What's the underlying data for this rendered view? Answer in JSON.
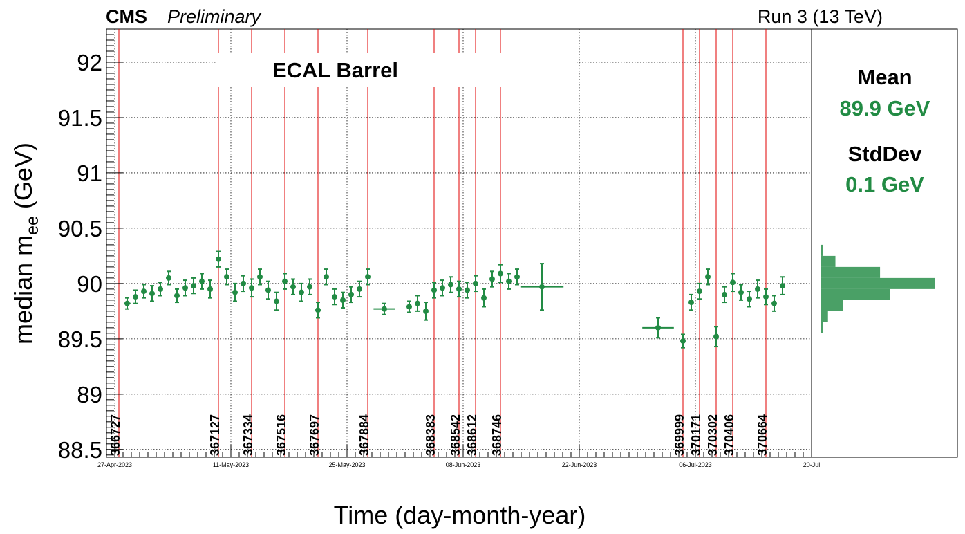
{
  "header": {
    "experiment": "CMS",
    "status": "Preliminary",
    "run_label": "Run 3 (13 TeV)"
  },
  "chart_data": {
    "type": "scatter",
    "title": "ECAL Barrel",
    "xlabel": "Time (day-month-year)",
    "ylabel_main": "median m",
    "ylabel_sub": "ee",
    "ylabel_unit": " (GeV)",
    "ylim": [
      88.43,
      92.3
    ],
    "xlim": [
      "2023-04-26",
      "2023-07-20"
    ],
    "y_ticks": [
      "88.5",
      "89",
      "89.5",
      "90",
      "90.5",
      "91",
      "91.5",
      "92"
    ],
    "x_ticks": [
      {
        "date": "2023-04-27",
        "label": "27-Apr-2023"
      },
      {
        "date": "2023-05-11",
        "label": "11-May-2023"
      },
      {
        "date": "2023-05-25",
        "label": "25-May-2023"
      },
      {
        "date": "2023-06-08",
        "label": "08-Jun-2023"
      },
      {
        "date": "2023-06-22",
        "label": "22-Jun-2023"
      },
      {
        "date": "2023-07-06",
        "label": "06-Jul-2023"
      },
      {
        "date": "2023-07-20",
        "label": "20-Jul"
      }
    ],
    "grid": true,
    "series_color": "#228b44",
    "run_line_color": "#e00000",
    "runs": [
      {
        "run": "366727",
        "date": "2023-04-27"
      },
      {
        "run": "367127",
        "date": "2023-05-09"
      },
      {
        "run": "367334",
        "date": "2023-05-13"
      },
      {
        "run": "367516",
        "date": "2023-05-17"
      },
      {
        "run": "367697",
        "date": "2023-05-21"
      },
      {
        "run": "367884",
        "date": "2023-05-27"
      },
      {
        "run": "368383",
        "date": "2023-06-04"
      },
      {
        "run": "368542",
        "date": "2023-06-07"
      },
      {
        "run": "368612",
        "date": "2023-06-09"
      },
      {
        "run": "368746",
        "date": "2023-06-12"
      },
      {
        "run": "369999",
        "date": "2023-07-04"
      },
      {
        "run": "370171",
        "date": "2023-07-06"
      },
      {
        "run": "370302",
        "date": "2023-07-08"
      },
      {
        "run": "370406",
        "date": "2023-07-10"
      },
      {
        "run": "370664",
        "date": "2023-07-14"
      }
    ],
    "points": [
      {
        "x": "2023-04-28",
        "y": 89.82,
        "yerr": 0.05,
        "xerr": 0.4
      },
      {
        "x": "2023-04-29",
        "y": 89.88,
        "yerr": 0.06
      },
      {
        "x": "2023-04-30",
        "y": 89.93,
        "yerr": 0.06
      },
      {
        "x": "2023-05-01",
        "y": 89.91,
        "yerr": 0.07
      },
      {
        "x": "2023-05-02",
        "y": 89.95,
        "yerr": 0.06
      },
      {
        "x": "2023-05-03",
        "y": 90.05,
        "yerr": 0.06
      },
      {
        "x": "2023-05-04",
        "y": 89.89,
        "yerr": 0.06
      },
      {
        "x": "2023-05-05",
        "y": 89.96,
        "yerr": 0.07
      },
      {
        "x": "2023-05-06",
        "y": 89.98,
        "yerr": 0.07
      },
      {
        "x": "2023-05-07",
        "y": 90.02,
        "yerr": 0.07
      },
      {
        "x": "2023-05-08",
        "y": 89.95,
        "yerr": 0.08
      },
      {
        "x": "2023-05-09",
        "y": 90.22,
        "yerr": 0.07
      },
      {
        "x": "2023-05-10",
        "y": 90.06,
        "yerr": 0.07
      },
      {
        "x": "2023-05-11",
        "y": 89.92,
        "yerr": 0.08
      },
      {
        "x": "2023-05-12",
        "y": 90.0,
        "yerr": 0.07
      },
      {
        "x": "2023-05-13",
        "y": 89.96,
        "yerr": 0.08
      },
      {
        "x": "2023-05-14",
        "y": 90.06,
        "yerr": 0.07
      },
      {
        "x": "2023-05-15",
        "y": 89.94,
        "yerr": 0.08
      },
      {
        "x": "2023-05-16",
        "y": 89.84,
        "yerr": 0.08
      },
      {
        "x": "2023-05-17",
        "y": 90.02,
        "yerr": 0.07
      },
      {
        "x": "2023-05-18",
        "y": 89.97,
        "yerr": 0.07
      },
      {
        "x": "2023-05-19",
        "y": 89.92,
        "yerr": 0.08
      },
      {
        "x": "2023-05-20",
        "y": 89.97,
        "yerr": 0.07
      },
      {
        "x": "2023-05-21",
        "y": 89.76,
        "yerr": 0.07
      },
      {
        "x": "2023-05-22",
        "y": 90.06,
        "yerr": 0.07
      },
      {
        "x": "2023-05-23",
        "y": 89.88,
        "yerr": 0.07
      },
      {
        "x": "2023-05-24",
        "y": 89.85,
        "yerr": 0.07
      },
      {
        "x": "2023-05-25",
        "y": 89.9,
        "yerr": 0.07
      },
      {
        "x": "2023-05-26",
        "y": 89.95,
        "yerr": 0.07
      },
      {
        "x": "2023-05-27",
        "y": 90.06,
        "yerr": 0.07
      },
      {
        "x": "2023-05-29",
        "y": 89.77,
        "yerr": 0.05,
        "xerr": 1.3
      },
      {
        "x": "2023-06-01",
        "y": 89.79,
        "yerr": 0.05
      },
      {
        "x": "2023-06-02",
        "y": 89.82,
        "yerr": 0.07
      },
      {
        "x": "2023-06-03",
        "y": 89.75,
        "yerr": 0.08
      },
      {
        "x": "2023-06-04",
        "y": 89.94,
        "yerr": 0.07
      },
      {
        "x": "2023-06-05",
        "y": 89.96,
        "yerr": 0.07
      },
      {
        "x": "2023-06-06",
        "y": 89.99,
        "yerr": 0.07
      },
      {
        "x": "2023-06-07",
        "y": 89.95,
        "yerr": 0.07
      },
      {
        "x": "2023-06-08",
        "y": 89.94,
        "yerr": 0.07
      },
      {
        "x": "2023-06-09",
        "y": 90.0,
        "yerr": 0.07
      },
      {
        "x": "2023-06-10",
        "y": 89.87,
        "yerr": 0.08
      },
      {
        "x": "2023-06-11",
        "y": 90.04,
        "yerr": 0.07
      },
      {
        "x": "2023-06-12",
        "y": 90.09,
        "yerr": 0.08
      },
      {
        "x": "2023-06-13",
        "y": 90.02,
        "yerr": 0.07
      },
      {
        "x": "2023-06-14",
        "y": 90.06,
        "yerr": 0.07
      },
      {
        "x": "2023-06-17",
        "y": 89.97,
        "yerr": 0.21,
        "xerr": 2.6
      },
      {
        "x": "2023-07-01",
        "y": 89.6,
        "yerr": 0.09,
        "xerr": 1.9
      },
      {
        "x": "2023-07-04",
        "y": 89.48,
        "yerr": 0.06
      },
      {
        "x": "2023-07-05",
        "y": 89.83,
        "yerr": 0.07
      },
      {
        "x": "2023-07-06",
        "y": 89.93,
        "yerr": 0.07
      },
      {
        "x": "2023-07-07",
        "y": 90.06,
        "yerr": 0.07
      },
      {
        "x": "2023-07-08",
        "y": 89.52,
        "yerr": 0.09
      },
      {
        "x": "2023-07-09",
        "y": 89.9,
        "yerr": 0.07
      },
      {
        "x": "2023-07-10",
        "y": 90.01,
        "yerr": 0.08
      },
      {
        "x": "2023-07-11",
        "y": 89.92,
        "yerr": 0.07
      },
      {
        "x": "2023-07-12",
        "y": 89.86,
        "yerr": 0.07
      },
      {
        "x": "2023-07-13",
        "y": 89.95,
        "yerr": 0.08
      },
      {
        "x": "2023-07-14",
        "y": 89.88,
        "yerr": 0.07
      },
      {
        "x": "2023-07-15",
        "y": 89.82,
        "yerr": 0.07
      },
      {
        "x": "2023-07-16",
        "y": 89.98,
        "yerr": 0.08
      }
    ],
    "histogram": {
      "orientation": "horizontal",
      "bins": [
        {
          "y": 89.6,
          "count": 1
        },
        {
          "y": 89.7,
          "count": 3
        },
        {
          "y": 89.8,
          "count": 9
        },
        {
          "y": 89.9,
          "count": 28
        },
        {
          "y": 90.0,
          "count": 46
        },
        {
          "y": 90.1,
          "count": 24
        },
        {
          "y": 90.2,
          "count": 6
        },
        {
          "y": 90.3,
          "count": 1
        }
      ],
      "color": "#228b44"
    },
    "stats": {
      "mean_label": "Mean",
      "mean_value": "89.9 GeV",
      "std_label": "StdDev",
      "std_value": "0.1 GeV"
    }
  }
}
